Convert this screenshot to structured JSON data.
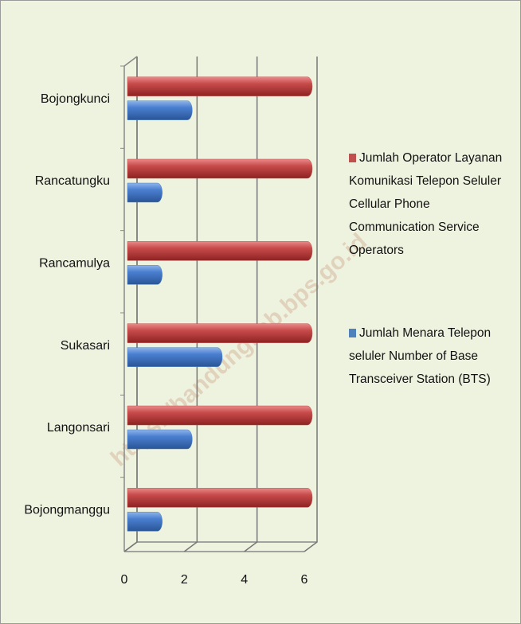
{
  "watermark": "https://bandungkab.bps.go.id",
  "chart_data": {
    "type": "bar",
    "orientation": "horizontal",
    "categories": [
      "Bojongkunci",
      "Rancatungku",
      "Rancamulya",
      "Sukasari",
      "Langonsari",
      "Bojongmanggu"
    ],
    "series": [
      {
        "name": "Jumlah Operator Layanan Komunikasi Telepon Seluler Cellular Phone Communication Service Operators",
        "color": "#c0504d",
        "values": [
          6,
          6,
          6,
          6,
          6,
          6
        ]
      },
      {
        "name": "Jumlah Menara Telepon seluler Number of Base Transceiver Station (BTS)",
        "color": "#4f81bd",
        "values": [
          2,
          1,
          1,
          3,
          2,
          1
        ]
      }
    ],
    "xlim": [
      0,
      6
    ],
    "xticks": [
      0,
      2,
      4,
      6
    ],
    "grid": true,
    "legend": "right"
  }
}
